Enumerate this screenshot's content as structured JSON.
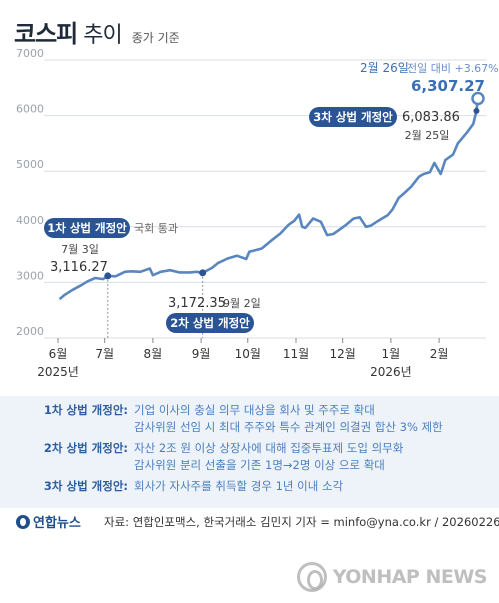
{
  "header": {
    "title_main": "코스피",
    "title_sub": "추이",
    "note": "종가 기준"
  },
  "chart_data": {
    "type": "line",
    "title": "코스피 추이",
    "subtitle": "종가 기준",
    "y_ticks": [
      "2000",
      "3000",
      "4000",
      "5000",
      "6000",
      "7000"
    ],
    "ylim": [
      2000,
      7000
    ],
    "x_ticks": [
      {
        "label": "6월",
        "date": "2025-06-01"
      },
      {
        "label": "7월",
        "date": "2025-07-01"
      },
      {
        "label": "8월",
        "date": "2025-08-01"
      },
      {
        "label": "9월",
        "date": "2025-09-01"
      },
      {
        "label": "10월",
        "date": "2025-10-01"
      },
      {
        "label": "11월",
        "date": "2025-11-01"
      },
      {
        "label": "12월",
        "date": "2025-12-01"
      },
      {
        "label": "1월",
        "date": "2026-01-01"
      },
      {
        "label": "2월",
        "date": "2026-02-01"
      }
    ],
    "year_labels": [
      {
        "label": "2025년",
        "date": "2025-06-01"
      },
      {
        "label": "2026년",
        "date": "2026-01-01"
      }
    ],
    "grid": "horizontal",
    "color": "#5a86c0",
    "series": [
      {
        "values": [
          [
            "2025-06-02",
            2700
          ],
          [
            "2025-06-05",
            2770
          ],
          [
            "2025-06-10",
            2860
          ],
          [
            "2025-06-16",
            2950
          ],
          [
            "2025-06-20",
            3020
          ],
          [
            "2025-06-25",
            3080
          ],
          [
            "2025-06-30",
            3060
          ],
          [
            "2025-07-03",
            3116.27
          ],
          [
            "2025-07-08",
            3110
          ],
          [
            "2025-07-14",
            3190
          ],
          [
            "2025-07-18",
            3200
          ],
          [
            "2025-07-24",
            3190
          ],
          [
            "2025-07-30",
            3250
          ],
          [
            "2025-08-01",
            3130
          ],
          [
            "2025-08-06",
            3190
          ],
          [
            "2025-08-12",
            3220
          ],
          [
            "2025-08-18",
            3180
          ],
          [
            "2025-08-25",
            3180
          ],
          [
            "2025-08-29",
            3190
          ],
          [
            "2025-09-02",
            3172.35
          ],
          [
            "2025-09-08",
            3260
          ],
          [
            "2025-09-12",
            3350
          ],
          [
            "2025-09-18",
            3430
          ],
          [
            "2025-09-24",
            3480
          ],
          [
            "2025-09-30",
            3420
          ],
          [
            "2025-10-02",
            3550
          ],
          [
            "2025-10-10",
            3610
          ],
          [
            "2025-10-16",
            3750
          ],
          [
            "2025-10-22",
            3880
          ],
          [
            "2025-10-27",
            4030
          ],
          [
            "2025-10-31",
            4110
          ],
          [
            "2025-11-03",
            4220
          ],
          [
            "2025-11-05",
            4000
          ],
          [
            "2025-11-07",
            3980
          ],
          [
            "2025-11-12",
            4150
          ],
          [
            "2025-11-17",
            4090
          ],
          [
            "2025-11-21",
            3850
          ],
          [
            "2025-11-25",
            3870
          ],
          [
            "2025-11-28",
            3930
          ],
          [
            "2025-12-03",
            4030
          ],
          [
            "2025-12-08",
            4150
          ],
          [
            "2025-12-12",
            4170
          ],
          [
            "2025-12-16",
            4000
          ],
          [
            "2025-12-19",
            4020
          ],
          [
            "2025-12-24",
            4110
          ],
          [
            "2025-12-30",
            4210
          ],
          [
            "2026-01-02",
            4310
          ],
          [
            "2026-01-06",
            4520
          ],
          [
            "2026-01-09",
            4590
          ],
          [
            "2026-01-14",
            4720
          ],
          [
            "2026-01-19",
            4900
          ],
          [
            "2026-01-22",
            4950
          ],
          [
            "2026-01-26",
            4980
          ],
          [
            "2026-01-29",
            5150
          ],
          [
            "2026-02-02",
            4950
          ],
          [
            "2026-02-05",
            5200
          ],
          [
            "2026-02-10",
            5300
          ],
          [
            "2026-02-13",
            5500
          ],
          [
            "2026-02-19",
            5700
          ],
          [
            "2026-02-23",
            5850
          ],
          [
            "2026-02-25",
            6083.86
          ],
          [
            "2026-02-26",
            6307.27
          ]
        ]
      }
    ],
    "annotations": {
      "a1": {
        "date": "2025-07-03",
        "value": 3116.27,
        "badge": "1차 상법 개정안",
        "note": "국회 통과",
        "date_label": "7월 3일",
        "value_label": "3,116.27"
      },
      "a2": {
        "date": "2025-09-02",
        "value": 3172.35,
        "badge": "2차 상법 개정안",
        "date_label": "9월 2일",
        "value_label": "3,172.35"
      },
      "a3": {
        "date": "2026-02-25",
        "value": 6083.86,
        "badge": "3차 상법 개정안",
        "date_label": "2월 25일",
        "value_label": "6,083.86"
      },
      "last": {
        "date": "2026-02-26",
        "value": 6307.27,
        "date_label": "2월 26일",
        "change_label": "전일 대비 +3.67%",
        "value_label": "6,307.27"
      }
    }
  },
  "notes": [
    {
      "label": "1차 상법 개정안:",
      "lines": [
        "기업 이사의 충실 의무 대상을 회사 및 주주로 확대",
        "감사위원 선임 시 최대 주주와 특수 관계인 의결권 합산 3% 제한"
      ]
    },
    {
      "label": "2차 상법 개정안:",
      "lines": [
        "자산 2조 원 이상 상장사에 대해 집중투표제 도입 의무화",
        "감사위원 분리 선출을 기존 1명→2명 이상 으로 확대"
      ]
    },
    {
      "label": "3차 상법 개정안:",
      "lines": [
        "회사가 자사주를 취득할 경우 1년 이내 소각"
      ]
    }
  ],
  "footer": {
    "logo_text": "연합뉴스",
    "source": "자료: 연합인포맥스, 한국거래소   김민지 기자 = minfo@yna.co.kr / 20260226",
    "watermark": "YONHAP NEWS"
  }
}
